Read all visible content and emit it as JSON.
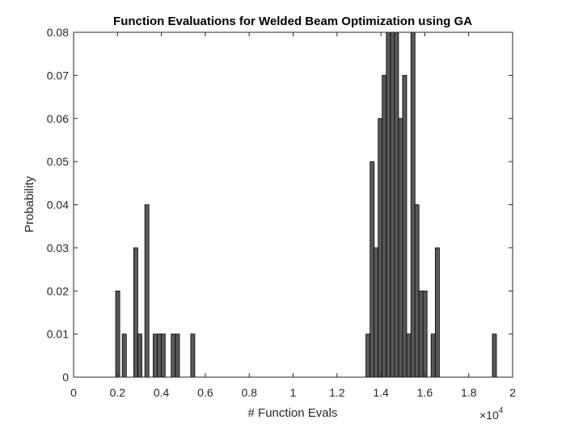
{
  "chart_data": {
    "type": "bar",
    "title": "Function Evaluations for Welded Beam Optimization using GA",
    "xlabel": "# Function Evals",
    "ylabel": "Probability",
    "x_exponent_label": "×10",
    "x_exponent_power": "4",
    "xlim": [
      0,
      2
    ],
    "ylim": [
      0,
      0.08
    ],
    "xticks": [
      "0",
      "0.2",
      "0.4",
      "0.6",
      "0.8",
      "1",
      "1.2",
      "1.4",
      "1.6",
      "1.8",
      "2"
    ],
    "yticks": [
      "0",
      "0.01",
      "0.02",
      "0.03",
      "0.04",
      "0.05",
      "0.06",
      "0.07",
      "0.08"
    ],
    "bin_width": 0.0186,
    "bar_color": "#595959",
    "bars": [
      {
        "x": 0.201,
        "y": 0.02
      },
      {
        "x": 0.231,
        "y": 0.01
      },
      {
        "x": 0.283,
        "y": 0.03
      },
      {
        "x": 0.302,
        "y": 0.01
      },
      {
        "x": 0.334,
        "y": 0.04
      },
      {
        "x": 0.372,
        "y": 0.01
      },
      {
        "x": 0.39,
        "y": 0.01
      },
      {
        "x": 0.408,
        "y": 0.01
      },
      {
        "x": 0.454,
        "y": 0.01
      },
      {
        "x": 0.473,
        "y": 0.01
      },
      {
        "x": 0.543,
        "y": 0.01
      },
      {
        "x": 1.341,
        "y": 0.01
      },
      {
        "x": 1.36,
        "y": 0.05
      },
      {
        "x": 1.378,
        "y": 0.03
      },
      {
        "x": 1.397,
        "y": 0.06
      },
      {
        "x": 1.415,
        "y": 0.07
      },
      {
        "x": 1.434,
        "y": 0.08
      },
      {
        "x": 1.453,
        "y": 0.08
      },
      {
        "x": 1.471,
        "y": 0.08
      },
      {
        "x": 1.49,
        "y": 0.06
      },
      {
        "x": 1.508,
        "y": 0.07
      },
      {
        "x": 1.527,
        "y": 0.01
      },
      {
        "x": 1.546,
        "y": 0.08
      },
      {
        "x": 1.564,
        "y": 0.04
      },
      {
        "x": 1.583,
        "y": 0.02
      },
      {
        "x": 1.601,
        "y": 0.02
      },
      {
        "x": 1.638,
        "y": 0.01
      },
      {
        "x": 1.657,
        "y": 0.03
      },
      {
        "x": 1.917,
        "y": 0.01
      }
    ]
  }
}
